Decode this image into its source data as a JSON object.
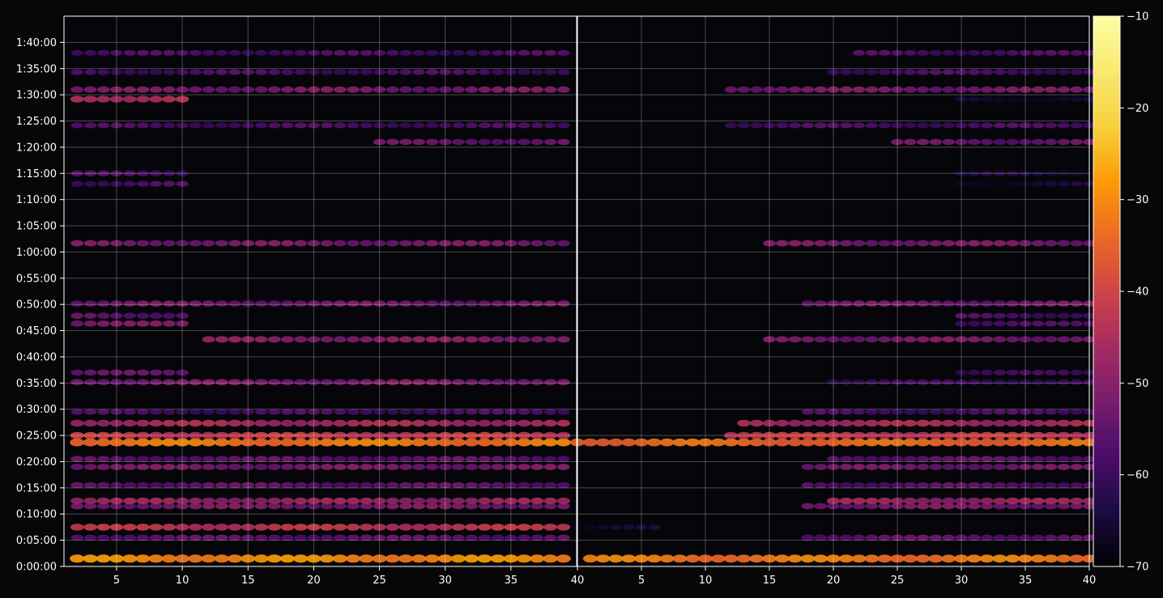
{
  "chart_data": {
    "type": "heatmap",
    "title": "",
    "xlabel": "",
    "ylabel": "",
    "panels": [
      {
        "name": "",
        "xlim": [
          1,
          40
        ],
        "xticks": [
          "5",
          "10",
          "15",
          "20",
          "25",
          "30",
          "35"
        ]
      },
      {
        "name": "",
        "xlim": [
          0,
          40
        ],
        "xticks": [
          "40",
          "5",
          "10",
          "15",
          "20",
          "25",
          "30",
          "35",
          "40"
        ]
      }
    ],
    "y_axis": {
      "ylim_seconds": [
        0,
        6300
      ],
      "ticks": [
        "0:00:00",
        "0:05:00",
        "0:10:00",
        "0:15:00",
        "0:20:00",
        "0:25:00",
        "0:30:00",
        "0:35:00",
        "0:40:00",
        "0:45:00",
        "0:50:00",
        "0:55:00",
        "1:00:00",
        "1:05:00",
        "1:10:00",
        "1:15:00",
        "1:20:00",
        "1:25:00",
        "1:30:00",
        "1:35:00",
        "1:40:00"
      ]
    },
    "grid": true,
    "colorbar": {
      "colormap": "inferno",
      "range": [
        -70,
        -10
      ],
      "ticks": [
        "−70",
        "−60",
        "−50",
        "−40",
        "−30",
        "−20",
        "−10"
      ]
    },
    "bands": [
      {
        "t": 90,
        "p1": [
          2,
          39,
          -30
        ],
        "p2": [
          1,
          40,
          -32
        ]
      },
      {
        "t": 330,
        "p1": [
          2,
          39,
          -55
        ],
        "p2": [
          18,
          40,
          -55
        ]
      },
      {
        "t": 450,
        "p1": [
          2,
          39,
          -43
        ],
        "p2": [
          0,
          6,
          -66
        ]
      },
      {
        "t": 690,
        "p1": [
          2,
          39,
          -52
        ],
        "p2": [
          18,
          40,
          -52
        ]
      },
      {
        "t": 750,
        "p1": [
          2,
          39,
          -48
        ],
        "p2": [
          20,
          40,
          -48
        ]
      },
      {
        "t": 930,
        "p1": [
          2,
          39,
          -55
        ],
        "p2": [
          18,
          40,
          -56
        ]
      },
      {
        "t": 1140,
        "p1": [
          2,
          39,
          -52
        ],
        "p2": [
          18,
          40,
          -53
        ]
      },
      {
        "t": 1230,
        "p1": [
          2,
          39,
          -55
        ],
        "p2": [
          20,
          40,
          -55
        ]
      },
      {
        "t": 1420,
        "p1": [
          2,
          39,
          -32
        ],
        "p2": [
          0,
          40,
          -34
        ]
      },
      {
        "t": 1500,
        "p1": [
          2,
          39,
          -42
        ],
        "p2": [
          12,
          40,
          -42
        ]
      },
      {
        "t": 1640,
        "p1": [
          2,
          39,
          -46
        ],
        "p2": [
          13,
          40,
          -46
        ]
      },
      {
        "t": 1770,
        "p1": [
          2,
          39,
          -58
        ],
        "p2": [
          18,
          40,
          -58
        ]
      },
      {
        "t": 2110,
        "p1": [
          2,
          39,
          -52
        ],
        "p2": [
          20,
          40,
          -60
        ]
      },
      {
        "t": 2220,
        "p1": [
          2,
          10,
          -55
        ],
        "p2": [
          30,
          40,
          -60
        ]
      },
      {
        "t": 2600,
        "p1": [
          12,
          39,
          -50
        ],
        "p2": [
          15,
          40,
          -52
        ]
      },
      {
        "t": 2780,
        "p1": [
          2,
          10,
          -52
        ],
        "p2": [
          30,
          40,
          -58
        ]
      },
      {
        "t": 2870,
        "p1": [
          2,
          10,
          -55
        ],
        "p2": [
          30,
          40,
          -58
        ]
      },
      {
        "t": 3010,
        "p1": [
          2,
          39,
          -53
        ],
        "p2": [
          18,
          40,
          -53
        ]
      },
      {
        "t": 3700,
        "p1": [
          2,
          39,
          -52
        ],
        "p2": [
          15,
          40,
          -52
        ]
      },
      {
        "t": 4380,
        "p1": [
          2,
          10,
          -58
        ],
        "p2": [
          30,
          40,
          -65
        ]
      },
      {
        "t": 4500,
        "p1": [
          2,
          10,
          -58
        ],
        "p2": [
          30,
          40,
          -65
        ]
      },
      {
        "t": 4860,
        "p1": [
          25,
          39,
          -54
        ],
        "p2": [
          25,
          40,
          -54
        ]
      },
      {
        "t": 5050,
        "p1": [
          2,
          39,
          -58
        ],
        "p2": [
          12,
          40,
          -58
        ]
      },
      {
        "t": 5350,
        "p1": [
          2,
          10,
          -44
        ],
        "p2": [
          30,
          40,
          -65
        ]
      },
      {
        "t": 5460,
        "p1": [
          2,
          39,
          -52
        ],
        "p2": [
          12,
          40,
          -52
        ]
      },
      {
        "t": 5660,
        "p1": [
          2,
          39,
          -58
        ],
        "p2": [
          20,
          40,
          -58
        ]
      },
      {
        "t": 5880,
        "p1": [
          2,
          39,
          -58
        ],
        "p2": [
          22,
          40,
          -58
        ]
      }
    ]
  }
}
